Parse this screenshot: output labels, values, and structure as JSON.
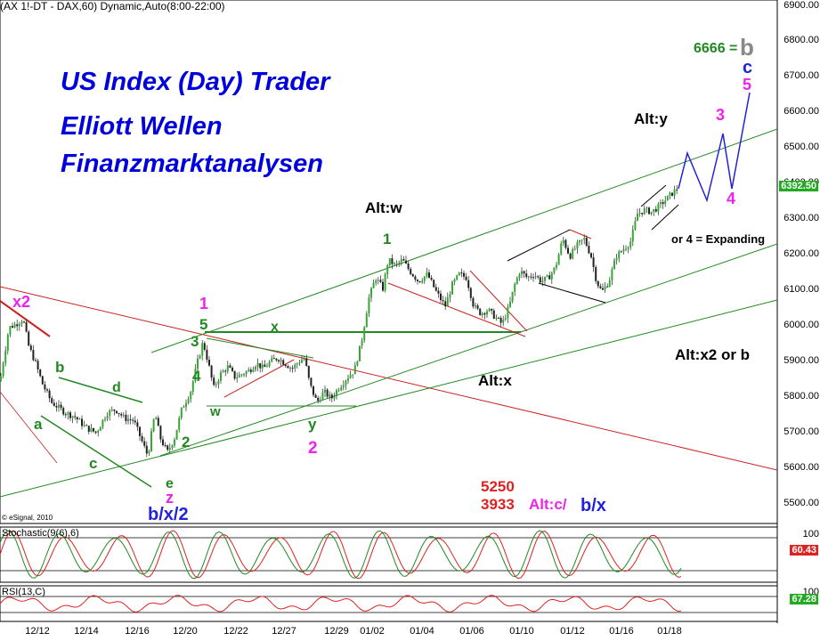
{
  "header": {
    "title": "(AX 1!-DT - DAX,60) Dynamic,Auto(8:00-22:00)"
  },
  "branding": [
    "US Index (Day) Trader",
    "Elliott Wellen",
    "Finanzmarktanalysen"
  ],
  "copyright": "© eSignal, 2010",
  "colors": {
    "up_candle": "#33aa33",
    "down_candle": "#222222",
    "channel_green": "#228822",
    "trend_red": "#cc2222",
    "projection_blue": "#2222dd",
    "price_tag": "#22aa22",
    "stoch_k": "#dd2222",
    "stoch_d": "#228822"
  },
  "chart_data": [
    {
      "type": "candlestick",
      "title": "(AX 1!-DT - DAX,60) Dynamic,Auto(8:00-22:00)",
      "x_ticks": [
        "12/12",
        "12/14",
        "12/16",
        "12/20",
        "12/22",
        "12/27",
        "12/29",
        "01/02",
        "01/04",
        "01/06",
        "01/10",
        "01/12",
        "01/16",
        "01/18"
      ],
      "y_ticks": [
        "5500.00",
        "5600.00",
        "5700.00",
        "5800.00",
        "5900.00",
        "6000.00",
        "6100.00",
        "6200.00",
        "6300.00",
        "6400.00",
        "6500.00",
        "6600.00",
        "6700.00",
        "6800.00",
        "6900.00"
      ],
      "ylim": [
        5460,
        6905
      ],
      "last_price": "6392.50",
      "price_path": [
        [
          0,
          5850
        ],
        [
          10,
          6000
        ],
        [
          18,
          6010
        ],
        [
          26,
          6025
        ],
        [
          32,
          5950
        ],
        [
          40,
          5900
        ],
        [
          48,
          5840
        ],
        [
          58,
          5790
        ],
        [
          66,
          5775
        ],
        [
          74,
          5760
        ],
        [
          84,
          5750
        ],
        [
          96,
          5720
        ],
        [
          108,
          5705
        ],
        [
          120,
          5760
        ],
        [
          130,
          5770
        ],
        [
          140,
          5745
        ],
        [
          150,
          5740
        ],
        [
          158,
          5690
        ],
        [
          166,
          5640
        ],
        [
          174,
          5760
        ],
        [
          180,
          5690
        ],
        [
          188,
          5650
        ],
        [
          196,
          5690
        ],
        [
          204,
          5770
        ],
        [
          214,
          5820
        ],
        [
          222,
          5905
        ],
        [
          228,
          5960
        ],
        [
          234,
          5900
        ],
        [
          240,
          5830
        ],
        [
          248,
          5870
        ],
        [
          256,
          5890
        ],
        [
          264,
          5860
        ],
        [
          272,
          5870
        ],
        [
          280,
          5880
        ],
        [
          288,
          5900
        ],
        [
          296,
          5885
        ],
        [
          304,
          5905
        ],
        [
          312,
          5915
        ],
        [
          320,
          5900
        ],
        [
          328,
          5885
        ],
        [
          336,
          5905
        ],
        [
          342,
          5915
        ],
        [
          348,
          5840
        ],
        [
          356,
          5790
        ],
        [
          364,
          5820
        ],
        [
          372,
          5800
        ],
        [
          380,
          5830
        ],
        [
          390,
          5860
        ],
        [
          398,
          5880
        ],
        [
          406,
          5960
        ],
        [
          414,
          6080
        ],
        [
          422,
          6140
        ],
        [
          430,
          6110
        ],
        [
          436,
          6190
        ],
        [
          444,
          6175
        ],
        [
          452,
          6190
        ],
        [
          460,
          6160
        ],
        [
          470,
          6130
        ],
        [
          480,
          6150
        ],
        [
          490,
          6100
        ],
        [
          500,
          6060
        ],
        [
          508,
          6120
        ],
        [
          516,
          6150
        ],
        [
          524,
          6140
        ],
        [
          532,
          6060
        ],
        [
          540,
          6040
        ],
        [
          548,
          6050
        ],
        [
          556,
          6030
        ],
        [
          564,
          6010
        ],
        [
          572,
          6060
        ],
        [
          578,
          6120
        ],
        [
          584,
          6160
        ],
        [
          592,
          6140
        ],
        [
          600,
          6150
        ],
        [
          608,
          6130
        ],
        [
          616,
          6140
        ],
        [
          624,
          6170
        ],
        [
          632,
          6250
        ],
        [
          640,
          6200
        ],
        [
          648,
          6230
        ],
        [
          656,
          6250
        ],
        [
          664,
          6200
        ],
        [
          670,
          6130
        ],
        [
          676,
          6100
        ],
        [
          684,
          6130
        ],
        [
          692,
          6200
        ],
        [
          700,
          6220
        ],
        [
          708,
          6240
        ],
        [
          716,
          6320
        ],
        [
          724,
          6330
        ],
        [
          732,
          6325
        ],
        [
          740,
          6340
        ],
        [
          748,
          6360
        ],
        [
          756,
          6380
        ],
        [
          762,
          6392
        ]
      ],
      "annotations": [
        {
          "text": "x2",
          "color": "#ee22ee"
        },
        {
          "text": "1",
          "color": "#ee22ee"
        },
        {
          "text": "5",
          "color": "#228822"
        },
        {
          "text": "3",
          "color": "#228822"
        },
        {
          "text": "4",
          "color": "#228822"
        },
        {
          "text": "w",
          "color": "#228822"
        },
        {
          "text": "x",
          "color": "#228822"
        },
        {
          "text": "y",
          "color": "#228822"
        },
        {
          "text": "2",
          "color": "#ee22ee"
        },
        {
          "text": "2",
          "color": "#228822"
        },
        {
          "text": "b",
          "color": "#228822"
        },
        {
          "text": "d",
          "color": "#228822"
        },
        {
          "text": "c",
          "color": "#228822"
        },
        {
          "text": "a",
          "color": "#228822"
        },
        {
          "text": "e",
          "color": "#228822"
        },
        {
          "text": "z",
          "color": "#ee22ee"
        },
        {
          "text": "b/x/2",
          "color": "#2222dd"
        },
        {
          "text": "Alt:w",
          "color": "#000000"
        },
        {
          "text": "1",
          "color": "#228822"
        },
        {
          "text": "Alt:x",
          "color": "#000000"
        },
        {
          "text": "Alt:y",
          "color": "#000000"
        },
        {
          "text": "Alt:x2 or b",
          "color": "#000000"
        },
        {
          "text": "or 4 = Expanding",
          "color": "#000000"
        },
        {
          "text": "6666 =",
          "color": "#228822"
        },
        {
          "text": "b",
          "color": "#888888"
        },
        {
          "text": "c",
          "color": "#2222dd"
        },
        {
          "text": "5",
          "color": "#ee22ee"
        },
        {
          "text": "3",
          "color": "#ee22ee"
        },
        {
          "text": "4",
          "color": "#ee22ee"
        },
        {
          "text": "5250",
          "color": "#dd2222"
        },
        {
          "text": "3933",
          "color": "#dd2222"
        },
        {
          "text": "Alt:c/",
          "color": "#ee22ee"
        },
        {
          "text": "b/x",
          "color": "#2222dd"
        }
      ]
    },
    {
      "type": "line",
      "title": "Stochastic(9(6),6)",
      "ylim": [
        0,
        100
      ],
      "y_ticks": [
        "100"
      ],
      "last_value": "60.43"
    },
    {
      "type": "line",
      "title": "RSI(13,C)",
      "ylim": [
        0,
        100
      ],
      "y_ticks": [
        "100"
      ],
      "last_value": "67.28"
    }
  ]
}
